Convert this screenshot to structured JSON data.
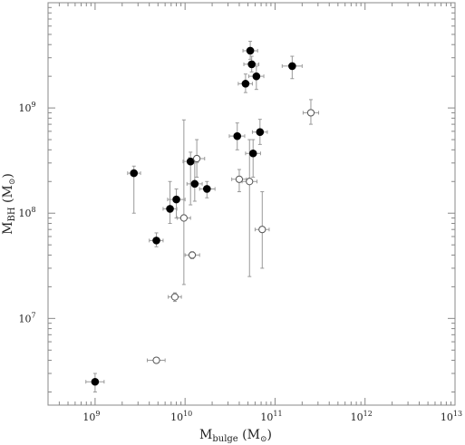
{
  "chart_data": {
    "type": "scatter",
    "x_scale": "log",
    "y_scale": "log",
    "xlim": [
      300000000,
      10000000000000
    ],
    "ylim": [
      1500000,
      10000000000
    ],
    "xlabel": {
      "main": "M",
      "sub": "bulge",
      "unit_open": " (M",
      "unit_sub": "⊙",
      "unit_close": ")"
    },
    "ylabel": {
      "main": "M",
      "sub": "BH",
      "unit_open": " (M",
      "unit_sub": "⊙",
      "unit_close": ")"
    },
    "x_ticks": [
      {
        "value": 1000000000,
        "base": "10",
        "exp": "9"
      },
      {
        "value": 10000000000,
        "base": "10",
        "exp": "10"
      },
      {
        "value": 100000000000,
        "base": "10",
        "exp": "11"
      },
      {
        "value": 1000000000000,
        "base": "10",
        "exp": "12"
      },
      {
        "value": 10000000000000,
        "base": "10",
        "exp": "13"
      }
    ],
    "y_ticks": [
      {
        "value": 10000000,
        "base": "10",
        "exp": "7"
      },
      {
        "value": 100000000,
        "base": "10",
        "exp": "8"
      },
      {
        "value": 1000000000,
        "base": "10",
        "exp": "9"
      }
    ],
    "series": [
      {
        "marker": "filled-circle",
        "points": [
          {
            "x": 1000000000,
            "y": 2500000,
            "xlo": 790000000,
            "xhi": 1260000000,
            "ylo": 2000000,
            "yhi": 3000000
          },
          {
            "x": 2700000000,
            "y": 240000000,
            "xlo": 2300000000,
            "xhi": 3200000000,
            "ylo": 100000000,
            "yhi": 280000000
          },
          {
            "x": 4800000000,
            "y": 55000000,
            "xlo": 4000000000,
            "xhi": 5700000000,
            "ylo": 48000000,
            "yhi": 65000000
          },
          {
            "x": 6800000000,
            "y": 110000000,
            "xlo": 5700000000,
            "xhi": 8100000000,
            "ylo": 80000000,
            "yhi": 200000000
          },
          {
            "x": 8000000000,
            "y": 135000000,
            "xlo": 6400000000,
            "xhi": 10000000000,
            "ylo": 90000000,
            "yhi": 170000000
          },
          {
            "x": 11500000000,
            "y": 310000000,
            "xlo": 9500000000,
            "xhi": 14000000000,
            "ylo": 120000000,
            "yhi": 380000000
          },
          {
            "x": 12800000000,
            "y": 190000000,
            "xlo": 10500000000,
            "xhi": 15500000000,
            "ylo": 130000000,
            "yhi": 300000000
          },
          {
            "x": 17500000000,
            "y": 170000000,
            "xlo": 14500000000,
            "xhi": 21500000000,
            "ylo": 140000000,
            "yhi": 200000000
          },
          {
            "x": 38000000000,
            "y": 540000000,
            "xlo": 31000000000,
            "xhi": 46000000000,
            "ylo": 400000000,
            "yhi": 720000000
          },
          {
            "x": 47000000000,
            "y": 1700000000,
            "xlo": 39000000000,
            "xhi": 56000000000,
            "ylo": 1400000000,
            "yhi": 2100000000
          },
          {
            "x": 53000000000,
            "y": 3500000000,
            "xlo": 44000000000,
            "xhi": 64000000000,
            "ylo": 2900000000,
            "yhi": 4300000000
          },
          {
            "x": 55000000000,
            "y": 2600000000,
            "xlo": 45000000000,
            "xhi": 66000000000,
            "ylo": 2200000000,
            "yhi": 3100000000
          },
          {
            "x": 62000000000,
            "y": 2000000000,
            "xlo": 51000000000,
            "xhi": 75000000000,
            "ylo": 1500000000,
            "yhi": 2500000000
          },
          {
            "x": 57000000000,
            "y": 370000000,
            "xlo": 47000000000,
            "xhi": 69000000000,
            "ylo": 220000000,
            "yhi": 500000000
          },
          {
            "x": 68000000000,
            "y": 590000000,
            "xlo": 56000000000,
            "xhi": 82000000000,
            "ylo": 450000000,
            "yhi": 780000000
          },
          {
            "x": 155000000000,
            "y": 2500000000,
            "xlo": 120000000000,
            "xhi": 200000000000,
            "ylo": 1900000000,
            "yhi": 3100000000
          }
        ]
      },
      {
        "marker": "open-circle",
        "points": [
          {
            "x": 4800000000,
            "y": 4000000,
            "xlo": 3800000000,
            "xhi": 6000000000,
            "ylo": 3800000,
            "yhi": 4200000
          },
          {
            "x": 7700000000,
            "y": 16000000,
            "xlo": 6500000000,
            "xhi": 9100000000,
            "ylo": 14500000,
            "yhi": 17500000
          },
          {
            "x": 9700000000,
            "y": 90000000,
            "xlo": 8200000000,
            "xhi": 11500000000,
            "ylo": 21000000,
            "yhi": 770000000
          },
          {
            "x": 12000000000,
            "y": 40000000,
            "xlo": 10000000000,
            "xhi": 14500000000,
            "ylo": 37000000,
            "yhi": 43000000
          },
          {
            "x": 13500000000,
            "y": 330000000,
            "xlo": 11000000000,
            "xhi": 16500000000,
            "ylo": 220000000,
            "yhi": 500000000
          },
          {
            "x": 40000000000,
            "y": 210000000,
            "xlo": 33000000000,
            "xhi": 48000000000,
            "ylo": 160000000,
            "yhi": 260000000
          },
          {
            "x": 52000000000,
            "y": 200000000,
            "xlo": 43000000000,
            "xhi": 63000000000,
            "ylo": 25000000,
            "yhi": 500000000
          },
          {
            "x": 72000000000,
            "y": 70000000,
            "xlo": 60000000000,
            "xhi": 86000000000,
            "ylo": 30000000,
            "yhi": 160000000
          },
          {
            "x": 250000000000,
            "y": 900000000,
            "xlo": 205000000000,
            "xhi": 305000000000,
            "ylo": 700000000,
            "yhi": 1200000000
          }
        ]
      }
    ]
  }
}
